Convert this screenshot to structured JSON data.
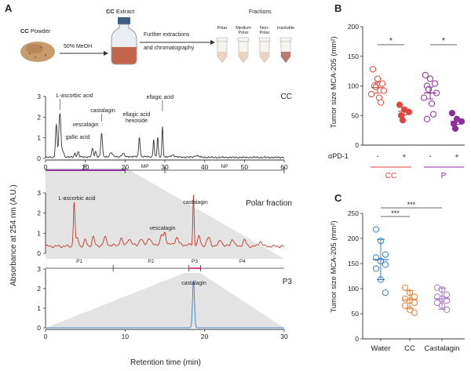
{
  "colors": {
    "cc_red": "#e0473c",
    "p_purple": "#8e2c9e",
    "black_trace": "#333333",
    "red_trace": "#c0392b",
    "blue_trace": "#3a7fc0",
    "blue_dot": "#3a7fc0",
    "orange_dot": "#e8803a",
    "lavender_dot": "#a77ac8",
    "shade": "#d8d8d8",
    "pink_tick": "#e0458a"
  },
  "panels": {
    "a": "A",
    "b": "B",
    "c": "C"
  },
  "workflow": {
    "powder_bold": "CC",
    "powder_rest": " Powder",
    "extract_bold": "CC",
    "extract_rest": " Extract",
    "solvent": "50% MeOH",
    "step_line1": "Further extractions",
    "step_line2": "and chromatography",
    "fractions_title": "Fractions",
    "tubes": [
      {
        "line1": "Polar",
        "line2": ""
      },
      {
        "line1": "Medium",
        "line2": "Polar"
      },
      {
        "line1": "Non-",
        "line2": "Polar"
      },
      {
        "line1": "Insoluble",
        "line2": ""
      }
    ]
  },
  "chart_data": [
    {
      "id": "chrom-cc",
      "type": "line",
      "title": "CC",
      "x_range": [
        0,
        60
      ],
      "y_range": [
        0,
        3
      ],
      "x_ticks": [
        0,
        10,
        20,
        30,
        40,
        50,
        60
      ],
      "y_ticks": [
        0,
        1,
        2,
        3
      ],
      "peaks": [
        [
          2.7,
          1.6,
          0.2
        ],
        [
          3.6,
          2.1,
          0.25
        ],
        [
          4.3,
          0.3,
          0.3
        ],
        [
          7.4,
          0.18,
          0.2
        ],
        [
          8.2,
          0.25,
          0.2
        ],
        [
          11.8,
          0.4,
          0.2
        ],
        [
          12.6,
          0.25,
          0.2
        ],
        [
          14.1,
          1.15,
          0.2
        ],
        [
          16.5,
          0.2,
          0.3
        ],
        [
          19.5,
          0.15,
          0.3
        ],
        [
          23.6,
          0.95,
          0.18
        ],
        [
          27.2,
          0.85,
          0.15
        ],
        [
          28.2,
          0.95,
          0.15
        ],
        [
          29.4,
          1.45,
          0.15
        ],
        [
          32.0,
          0.1,
          0.4
        ],
        [
          38.0,
          0.08,
          0.5
        ]
      ],
      "annotations": [
        {
          "label": "L-ascorbic acid",
          "x": 3.6
        },
        {
          "label": "gallic acid",
          "x": 7.4
        },
        {
          "label": "vescalagin",
          "x": 11.8
        },
        {
          "label": "castalagin",
          "x": 14.1
        },
        {
          "label": "ellagic acid hexoside",
          "x": 23.6
        },
        {
          "label": "ellagic acid",
          "x": 29.4
        }
      ],
      "fractions": [
        {
          "label": "P",
          "start": 0,
          "end": 20
        },
        {
          "label": "MP",
          "start": 20,
          "end": 30
        },
        {
          "label": "NP",
          "start": 30,
          "end": 60
        }
      ]
    },
    {
      "id": "chrom-polar",
      "type": "line",
      "title": "Polar fraction",
      "x_range": [
        0,
        30
      ],
      "y_range": [
        0,
        3
      ],
      "peaks": [
        [
          3.6,
          2.2,
          0.1
        ],
        [
          4.0,
          0.4,
          0.15
        ],
        [
          5.0,
          0.3,
          0.15
        ],
        [
          6.0,
          0.45,
          0.15
        ],
        [
          7.5,
          0.4,
          0.2
        ],
        [
          9.5,
          0.35,
          0.15
        ],
        [
          10.5,
          0.3,
          0.2
        ],
        [
          12.0,
          0.25,
          0.2
        ],
        [
          13.0,
          0.3,
          0.2
        ],
        [
          14.6,
          0.45,
          0.15
        ],
        [
          15.0,
          0.6,
          0.15
        ],
        [
          16.5,
          0.35,
          0.2
        ],
        [
          18.6,
          2.5,
          0.08
        ],
        [
          19.3,
          0.45,
          0.15
        ],
        [
          20.5,
          0.4,
          0.2
        ],
        [
          22.0,
          0.3,
          0.2
        ],
        [
          23.5,
          0.35,
          0.2
        ],
        [
          25.0,
          0.3,
          0.2
        ],
        [
          27.0,
          0.25,
          0.2
        ]
      ],
      "annotations": [
        {
          "label": "L-ascorbic acid",
          "x": 3.6
        },
        {
          "label": "vescalagin",
          "x": 15.0
        },
        {
          "label": "castalagin",
          "x": 18.6
        }
      ],
      "fractions": [
        {
          "label": "P1",
          "start": 0,
          "end": 8.5
        },
        {
          "label": "P2",
          "start": 8.5,
          "end": 18
        },
        {
          "label": "P3",
          "start": 18,
          "end": 19.5
        },
        {
          "label": "P4",
          "start": 19.5,
          "end": 30
        }
      ]
    },
    {
      "id": "chrom-p3",
      "type": "line",
      "title": "P3",
      "x_range": [
        0,
        30
      ],
      "y_range": [
        0,
        3
      ],
      "x_ticks": [
        0,
        10,
        20,
        30
      ],
      "y_ticks": [
        0,
        1,
        2,
        3
      ],
      "peaks": [
        [
          18.6,
          2.4,
          0.12
        ]
      ],
      "annotations": [
        {
          "label": "castalagin",
          "x": 18.6
        }
      ]
    },
    {
      "id": "scatter-b",
      "type": "scatter",
      "ylabel": "Tumor size MCA-205 (mm²)",
      "y_range": [
        0,
        200
      ],
      "y_ticks": [
        0,
        50,
        100,
        150,
        200
      ],
      "row_label": "αPD-1",
      "groups": [
        {
          "name": "CC -",
          "sign": "-",
          "group": "CC",
          "style": "open",
          "color": "#e0473c",
          "mean": 97,
          "sem": 9,
          "values": [
            128,
            112,
            104,
            100,
            98,
            92,
            86,
            80,
            72
          ]
        },
        {
          "name": "CC +",
          "sign": "+",
          "group": "CC",
          "style": "filled",
          "color": "#e0473c",
          "mean": 57,
          "sem": 6,
          "values": [
            68,
            60,
            56,
            50,
            42
          ]
        },
        {
          "name": "P -",
          "sign": "-",
          "group": "P",
          "style": "open",
          "color": "#8e2c9e",
          "mean": 88,
          "sem": 10,
          "values": [
            118,
            112,
            104,
            100,
            94,
            88,
            80,
            70,
            52,
            44
          ]
        },
        {
          "name": "P +",
          "sign": "+",
          "group": "P",
          "style": "filled",
          "color": "#8e2c9e",
          "mean": 40,
          "sem": 5,
          "values": [
            54,
            44,
            40,
            36,
            28
          ]
        }
      ],
      "significance": [
        {
          "label": "*",
          "between": [
            "CC -",
            "CC +"
          ]
        },
        {
          "label": "*",
          "between": [
            "P -",
            "P +"
          ]
        }
      ]
    },
    {
      "id": "scatter-c",
      "type": "scatter",
      "ylabel": "Tumor size MCA-205 (mm²)",
      "y_range": [
        0,
        250
      ],
      "y_ticks": [
        0,
        50,
        100,
        150,
        200,
        250
      ],
      "categories": [
        "Water",
        "CC",
        "Castalagin"
      ],
      "groups": [
        {
          "name": "Water",
          "color": "#3a7fc0",
          "mean": 158,
          "sd": 40,
          "values": [
            218,
            195,
            168,
            162,
            155,
            148,
            140,
            118,
            92
          ]
        },
        {
          "name": "CC",
          "color": "#e8803a",
          "mean": 78,
          "sd": 18,
          "values": [
            102,
            92,
            84,
            80,
            76,
            72,
            66,
            58,
            52
          ]
        },
        {
          "name": "Castalagin",
          "color": "#a77ac8",
          "mean": 80,
          "sd": 21,
          "values": [
            102,
            98,
            88,
            84,
            80,
            76,
            72,
            66,
            58
          ]
        }
      ],
      "significance": [
        {
          "label": "***",
          "between": [
            "Water",
            "CC"
          ]
        },
        {
          "label": "***",
          "between": [
            "Water",
            "Castalagin"
          ]
        }
      ]
    }
  ],
  "axes": {
    "a_ylabel": "Absorbance at 254 nm (A.U.)",
    "a_xlabel": "Retention time (min)"
  }
}
